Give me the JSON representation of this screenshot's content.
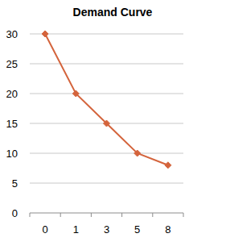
{
  "chart_data": {
    "type": "line",
    "title": "Demand Curve",
    "categories": [
      "0",
      "1",
      "3",
      "5",
      "8"
    ],
    "values": [
      30,
      20,
      15,
      10,
      8
    ],
    "color": "#d4643c",
    "marker": "diamond",
    "ylim": [
      0,
      30
    ],
    "yticks": [
      0,
      5,
      10,
      15,
      20,
      25,
      30
    ],
    "grid": true
  }
}
